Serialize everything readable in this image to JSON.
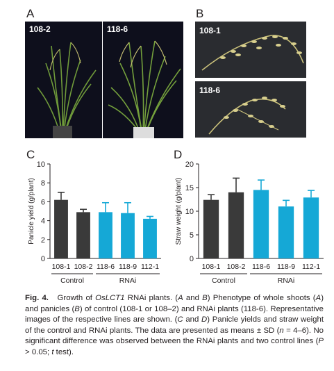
{
  "panels": {
    "A": {
      "letter": "A",
      "labels": [
        "108-2",
        "118-6"
      ]
    },
    "B": {
      "letter": "B",
      "labels": [
        "108-1",
        "118-6"
      ]
    },
    "C": {
      "letter": "C"
    },
    "D": {
      "letter": "D"
    }
  },
  "colors": {
    "control": "#3a3a3a",
    "rnai": "#15a8d6",
    "photo_bg_a": "#0e0f1c",
    "photo_bg_b": "#2a2c30"
  },
  "chart_data": [
    {
      "type": "bar",
      "panel": "C",
      "title": "",
      "ylabel": "Panicle yield  (g/plant)",
      "xlabel": "",
      "ylim": [
        0,
        10
      ],
      "yticks": [
        0,
        2,
        4,
        6,
        8,
        10
      ],
      "categories": [
        "108-1",
        "108-2",
        "118-6",
        "118-9",
        "112-1"
      ],
      "values": [
        6.2,
        4.9,
        4.9,
        4.8,
        4.2
      ],
      "errors": [
        0.8,
        0.3,
        1.0,
        1.1,
        0.25
      ],
      "groups": [
        {
          "label": "Control",
          "members": [
            "108-1",
            "108-2"
          ]
        },
        {
          "label": "RNAi",
          "members": [
            "118-6",
            "118-9",
            "112-1"
          ]
        }
      ],
      "series": [
        {
          "values": [
            6.2,
            4.9,
            4.9,
            4.8,
            4.2
          ]
        }
      ],
      "grid": false
    },
    {
      "type": "bar",
      "panel": "D",
      "title": "",
      "ylabel": "Straw weight (g/plant)",
      "xlabel": "",
      "ylim": [
        0,
        20
      ],
      "yticks": [
        0,
        5,
        10,
        15,
        20
      ],
      "categories": [
        "108-1",
        "108-2",
        "118-6",
        "118-9",
        "112-1"
      ],
      "values": [
        12.4,
        14.0,
        14.5,
        11.0,
        12.9
      ],
      "errors": [
        1.1,
        3.0,
        2.1,
        1.3,
        1.5
      ],
      "groups": [
        {
          "label": "Control",
          "members": [
            "108-1",
            "108-2"
          ]
        },
        {
          "label": "RNAi",
          "members": [
            "118-6",
            "118-9",
            "112-1"
          ]
        }
      ],
      "series": [
        {
          "values": [
            12.4,
            14.0,
            14.5,
            11.0,
            12.9
          ]
        }
      ],
      "grid": false
    }
  ],
  "caption": {
    "fig_label": "Fig. 4.",
    "title_pre": "Growth of ",
    "title_gene": "OsLCT1",
    "title_post": " RNAi plants. (",
    "p1": "A",
    "t1": " and ",
    "p2": "B",
    "t2": ") Phenotype of whole shoots (",
    "p3": "A",
    "t3": ") and panicles (",
    "p4": "B",
    "t4": ") of control (108-1 or 108–2) and RNAi plants (118-6). Representative images of the respective lines are shown. (",
    "p5": "C",
    "t5": " and ",
    "p6": "D",
    "t6": ") Panicle yields and straw weight of the control and RNAi plants. The data are presented as means ± SD (",
    "n_var": "n",
    "t7": " = 4–6). No significant difference was observed between the RNAi plants and two control lines (",
    "p_var": "P",
    "t8": " > 0.05; ",
    "t_var": "t",
    "t9": " test)."
  }
}
